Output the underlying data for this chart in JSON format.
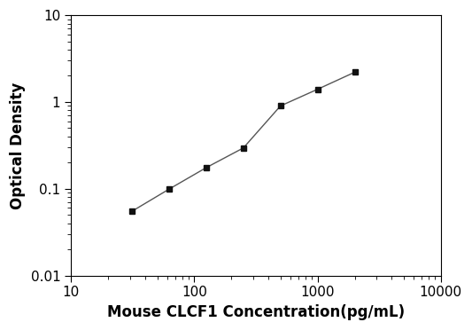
{
  "x": [
    31.25,
    62.5,
    125,
    250,
    500,
    1000,
    2000
  ],
  "y": [
    0.055,
    0.099,
    0.175,
    0.295,
    0.9,
    1.4,
    2.2
  ],
  "xlabel": "Mouse CLCF1 Concentration(pg/mL)",
  "ylabel": "Optical Density",
  "xlim": [
    10,
    10000
  ],
  "ylim": [
    0.01,
    10
  ],
  "line_color": "#555555",
  "marker_color": "#111111",
  "marker": "s",
  "marker_size": 5,
  "line_width": 1.0,
  "background_color": "#ffffff",
  "xlabel_fontsize": 12,
  "ylabel_fontsize": 12,
  "tick_fontsize": 11
}
